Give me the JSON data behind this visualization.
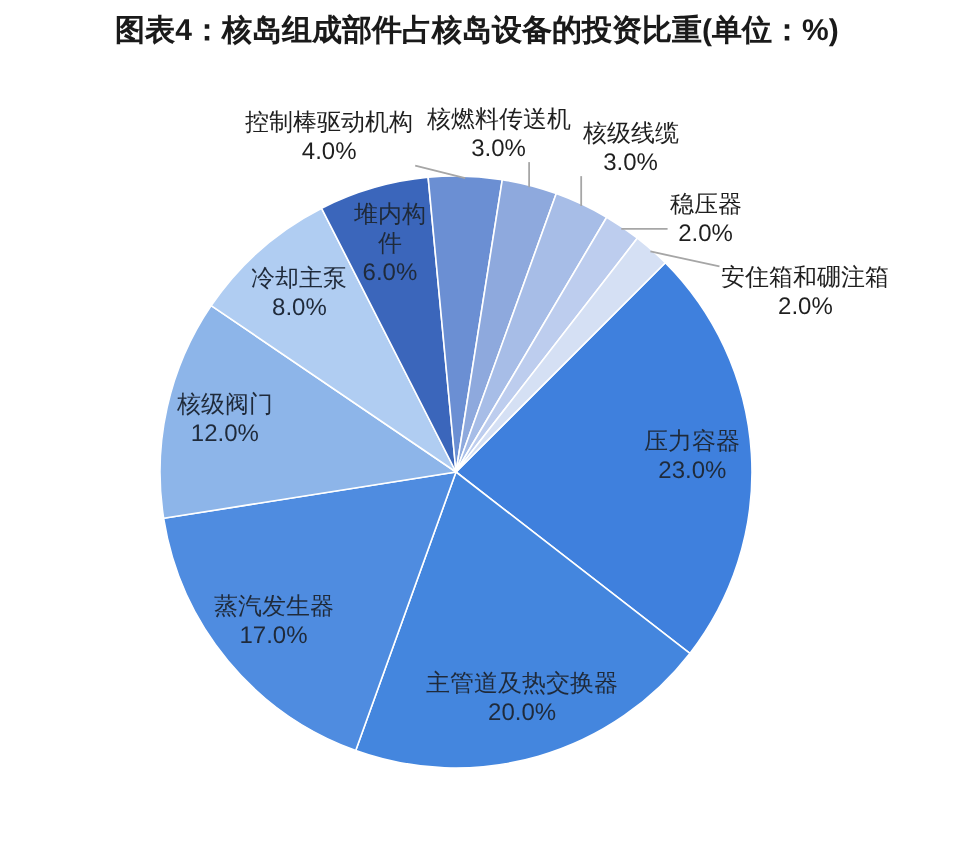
{
  "chart_data": {
    "type": "pie",
    "title": "图表4：核岛组成部件占核岛设备的投资比重(单位：%)",
    "categories": [
      "压力容器",
      "主管道及热交换器",
      "蒸汽发生器",
      "核级阀门",
      "冷却主泵",
      "堆内构件",
      "控制棒驱动机构",
      "核燃料传送机",
      "核级线缆",
      "稳压器",
      "安住箱和硼注箱"
    ],
    "values": [
      23,
      20,
      17,
      12,
      8,
      6,
      4,
      3,
      3,
      2,
      2
    ],
    "colors": [
      "#3f80dd",
      "#4486de",
      "#4f8ce0",
      "#8db5e9",
      "#b0cdf2",
      "#3b66bb",
      "#6b8fd3",
      "#8ea9dd",
      "#a7bde7",
      "#bdcdee",
      "#d5e0f4"
    ],
    "value_labels": [
      "23.0%",
      "20.0%",
      "17.0%",
      "12.0%",
      "8.0%",
      "6.0%",
      "4.0%",
      "3.0%",
      "3.0%",
      "2.0%",
      "2.0%"
    ]
  }
}
